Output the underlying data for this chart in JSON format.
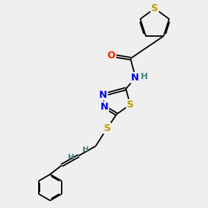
{
  "background_color": "#efefef",
  "bond_color": "#000000",
  "atom_colors": {
    "S": "#b8a000",
    "O": "#ff2000",
    "N": "#0000ee",
    "H": "#408080",
    "C": "#000000"
  },
  "font_size_atoms": 8,
  "fig_size": [
    3.0,
    3.0
  ],
  "dpi": 100
}
